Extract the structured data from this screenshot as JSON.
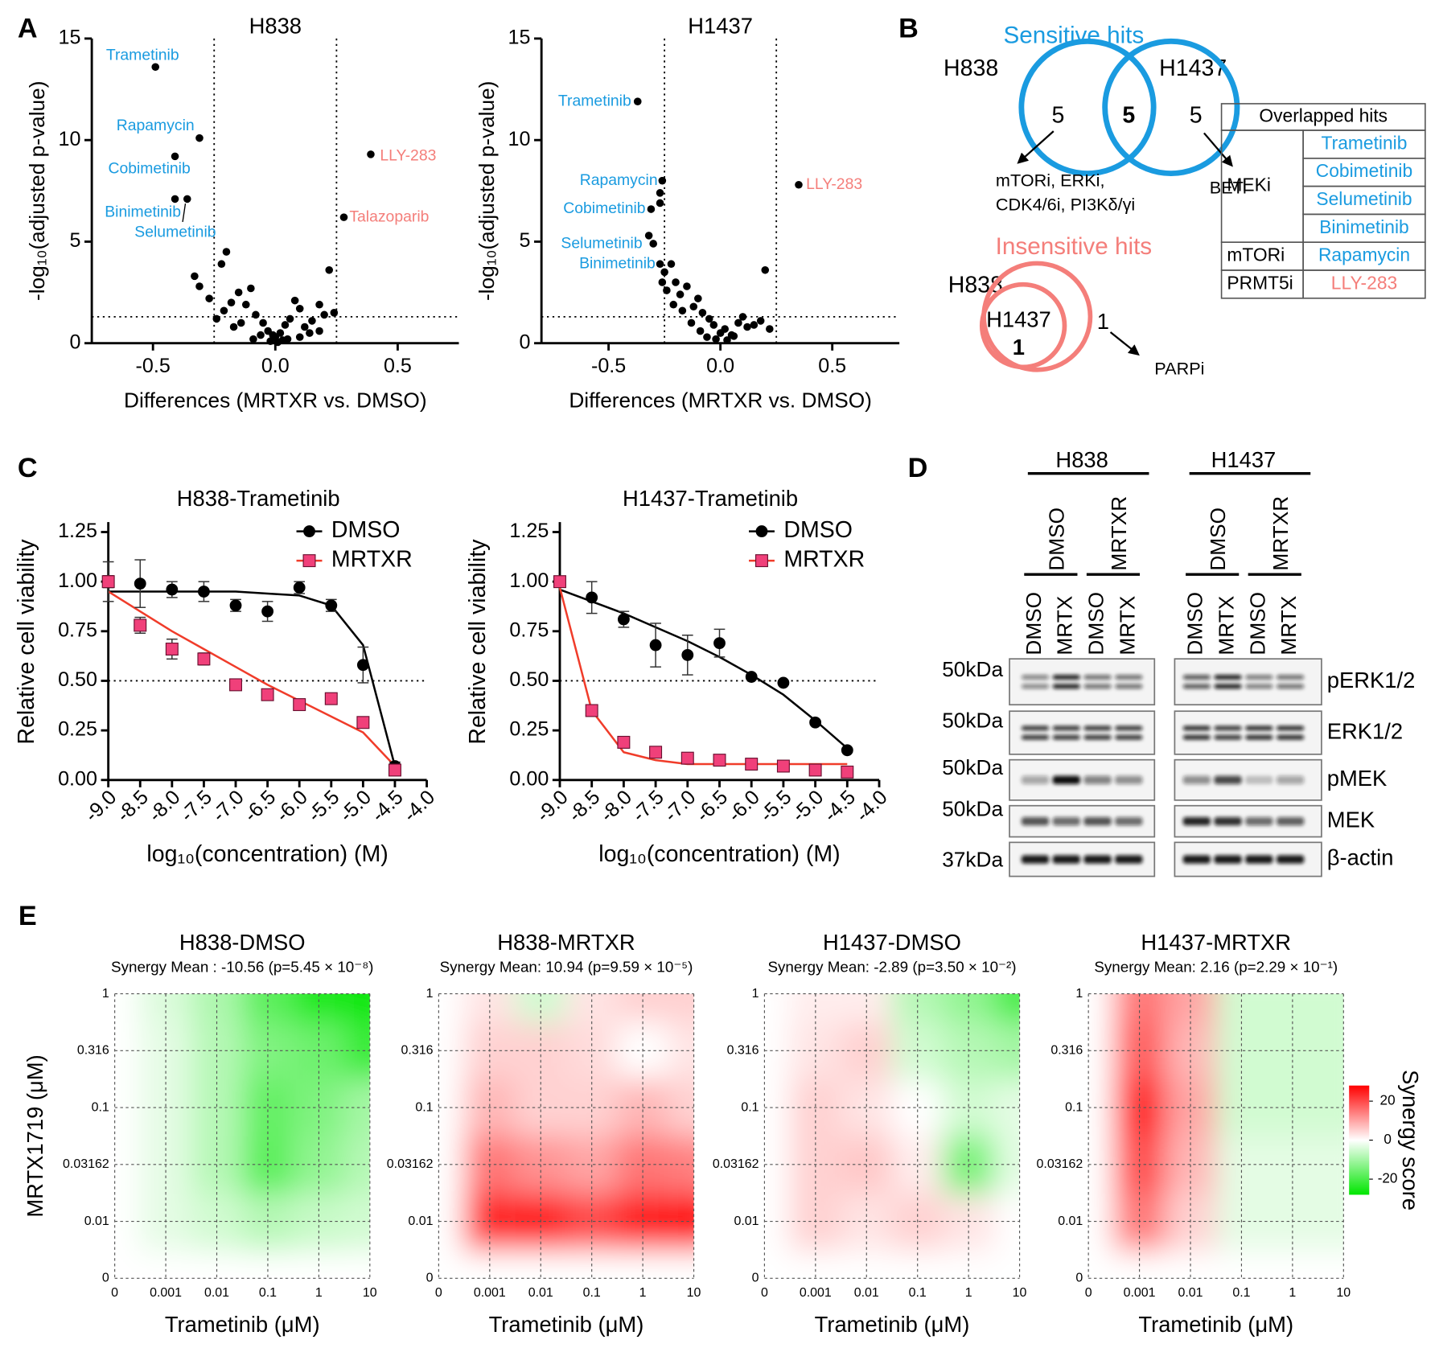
{
  "panel_labels": [
    "A",
    "B",
    "C",
    "D",
    "E"
  ],
  "chart_data": [
    {
      "type": "scatter",
      "title": "H838",
      "xlabel": "Differences (MRTXR vs. DMSO)",
      "ylabel": "-log₁₀(adjusted p-value)",
      "xlim": [
        -0.75,
        0.75
      ],
      "xticks": [
        -0.5,
        {
          "value": 0,
          "label": "0.0"
        },
        0.5
      ],
      "ylim": [
        0,
        15
      ],
      "yticks": [
        0,
        5,
        10,
        15
      ],
      "thresholds": {
        "x": [
          -0.25,
          0.25
        ],
        "y": 1.3
      },
      "color": "#000000",
      "x": [
        -0.49,
        -0.31,
        -0.41,
        -0.41,
        -0.36,
        0.39,
        0.28,
        -0.33,
        -0.31,
        -0.27,
        -0.22,
        -0.2,
        -0.18,
        -0.21,
        -0.15,
        -0.12,
        -0.1,
        -0.08,
        -0.05,
        -0.03,
        0,
        0.02,
        0.04,
        0.06,
        0.08,
        0.1,
        0.12,
        0.15,
        0.18,
        0.2,
        0.22,
        0.24,
        0.18,
        0.05,
        -0.02,
        -0.06,
        -0.14,
        -0.17,
        -0.24,
        0.1,
        0.14,
        -0.09,
        0.01,
        0.03,
        -0.01
      ],
      "values": [
        13.6,
        10.1,
        9.2,
        7.1,
        7.1,
        9.3,
        6.2,
        3.3,
        2.8,
        2.2,
        3.9,
        4.5,
        2.0,
        1.6,
        2.5,
        1.9,
        2.7,
        1.4,
        1.0,
        0.6,
        0.3,
        0.5,
        0.9,
        1.2,
        2.1,
        1.7,
        0.8,
        1.1,
        1.9,
        1.4,
        3.6,
        1.5,
        0.6,
        0.2,
        0.1,
        0.4,
        1.0,
        0.8,
        1.2,
        0.3,
        0.5,
        0.2,
        0.05,
        0.15,
        0.4
      ],
      "point_labels": [
        {
          "index": 0,
          "text": "Trametinib",
          "color": "#1a9be0"
        },
        {
          "index": 1,
          "text": "Rapamycin",
          "color": "#1a9be0"
        },
        {
          "index": 2,
          "text": "Cobimetinib",
          "color": "#1a9be0"
        },
        {
          "index": 3,
          "text": "Binimetinib",
          "color": "#1a9be0"
        },
        {
          "index": 4,
          "text": "Selumetinib",
          "color": "#1a9be0"
        },
        {
          "index": 5,
          "text": "LLY-283",
          "color": "#f47e7a"
        },
        {
          "index": 6,
          "text": "Talazoparib",
          "color": "#f47e7a"
        }
      ]
    },
    {
      "type": "scatter",
      "title": "H1437",
      "xlabel": "Differences (MRTXR vs. DMSO)",
      "ylabel": "-log₁₀(adjusted p-value)",
      "xlim": [
        -0.8,
        0.8
      ],
      "xticks": [
        -0.5,
        {
          "value": 0,
          "label": "0.0"
        },
        0.5
      ],
      "ylim": [
        0,
        15
      ],
      "yticks": [
        0,
        5,
        10,
        15
      ],
      "thresholds": {
        "x": [
          -0.25,
          0.25
        ],
        "y": 1.3
      },
      "color": "#000000",
      "x": [
        -0.37,
        -0.26,
        -0.27,
        -0.31,
        -0.27,
        -0.32,
        -0.3,
        -0.27,
        0.35,
        -0.25,
        -0.22,
        -0.2,
        -0.18,
        -0.15,
        -0.12,
        -0.1,
        -0.08,
        -0.05,
        -0.03,
        0,
        0.02,
        0.05,
        0.08,
        0.1,
        0.12,
        0.15,
        0.2,
        0.22,
        -0.24,
        -0.21,
        -0.17,
        -0.13,
        -0.09,
        -0.06,
        -0.02,
        0.03,
        0.06,
        -0.26,
        0.18
      ],
      "values": [
        11.9,
        8.0,
        7.4,
        6.6,
        6.9,
        5.3,
        4.9,
        3.9,
        7.8,
        3.5,
        3.9,
        3.0,
        2.4,
        2.8,
        1.8,
        2.2,
        1.5,
        1.2,
        0.9,
        0.5,
        0.7,
        0.4,
        1.0,
        1.3,
        0.8,
        0.9,
        3.6,
        0.7,
        2.6,
        1.9,
        1.6,
        1.0,
        0.6,
        0.3,
        0.2,
        0.15,
        0.35,
        3.0,
        1.1
      ],
      "point_labels": [
        {
          "index": 0,
          "text": "Trametinib",
          "color": "#1a9be0"
        },
        {
          "index": 1,
          "text": "Rapamycin",
          "color": "#1a9be0"
        },
        {
          "index": 3,
          "text": "Cobimetinib",
          "color": "#1a9be0"
        },
        {
          "index": 5,
          "text": "Selumetinib",
          "color": "#1a9be0"
        },
        {
          "index": 7,
          "text": "Binimetinib",
          "color": "#1a9be0"
        },
        {
          "index": 8,
          "text": "LLY-283",
          "color": "#f47e7a"
        }
      ]
    },
    {
      "type": "line",
      "title": "H838-Trametinib",
      "xlabel": "log₁₀(concentration) (M)",
      "ylabel": "Relative cell viability",
      "xlim": [
        -9,
        -4
      ],
      "xticks": [
        {
          "value": -9,
          "label": "-9.0"
        },
        -8.5,
        {
          "value": -8,
          "label": "-8.0"
        },
        -7.5,
        {
          "value": -7,
          "label": "-7.0"
        },
        -6.5,
        {
          "value": -6,
          "label": "-6.0"
        },
        -5.5,
        {
          "value": -5,
          "label": "-5.0"
        },
        -4.5,
        {
          "value": -4,
          "label": "-4.0"
        }
      ],
      "ylim": [
        0,
        1.3
      ],
      "yticks": [
        {
          "value": 0,
          "label": "0.00"
        },
        0.25,
        {
          "value": 0.5,
          "label": "0.50"
        },
        0.75,
        {
          "value": 1,
          "label": "1.00"
        },
        1.25
      ],
      "hline": 0.5,
      "legend": "upper right",
      "x": [
        -9,
        -8.5,
        -8,
        -7.5,
        -7,
        -6.5,
        -6,
        -5.5,
        -5,
        -4.5
      ],
      "series": [
        {
          "name": "DMSO",
          "marker": "circle",
          "color": "#000000",
          "line_color": "#000000",
          "values": [
            1.0,
            0.99,
            0.96,
            0.95,
            0.88,
            0.85,
            0.97,
            0.88,
            0.58,
            0.07
          ],
          "errors": [
            0.1,
            0.12,
            0.04,
            0.05,
            0.03,
            0.05,
            0.03,
            0.03,
            0.09,
            0.02
          ],
          "fit": [
            0.95,
            0.95,
            0.95,
            0.95,
            0.95,
            0.94,
            0.93,
            0.88,
            0.68,
            0.07
          ]
        },
        {
          "name": "MRTXR",
          "marker": "square",
          "color": "#f0407a",
          "line_color": "#f03c2a",
          "values": [
            1.0,
            0.78,
            0.66,
            0.61,
            0.48,
            0.43,
            0.38,
            0.41,
            0.29,
            0.05
          ],
          "errors": [
            0.03,
            0.04,
            0.05,
            0.03,
            0.02,
            0.02,
            0.02,
            0.02,
            0.02,
            0.01
          ],
          "fit": [
            0.95,
            0.85,
            0.75,
            0.66,
            0.57,
            0.48,
            0.4,
            0.32,
            0.24,
            0.07
          ]
        }
      ]
    },
    {
      "type": "line",
      "title": "H1437-Trametinib",
      "xlabel": "log₁₀(concentration) (M)",
      "ylabel": "Relative cell viability",
      "xlim": [
        -9,
        -4
      ],
      "xticks": [
        {
          "value": -9,
          "label": "-9.0"
        },
        -8.5,
        {
          "value": -8,
          "label": "-8.0"
        },
        -7.5,
        {
          "value": -7,
          "label": "-7.0"
        },
        -6.5,
        {
          "value": -6,
          "label": "-6.0"
        },
        -5.5,
        {
          "value": -5,
          "label": "-5.0"
        },
        -4.5,
        {
          "value": -4,
          "label": "-4.0"
        }
      ],
      "ylim": [
        0,
        1.3
      ],
      "yticks": [
        {
          "value": 0,
          "label": "0.00"
        },
        0.25,
        {
          "value": 0.5,
          "label": "0.50"
        },
        0.75,
        {
          "value": 1,
          "label": "1.00"
        },
        1.25
      ],
      "hline": 0.5,
      "legend": "upper right",
      "x": [
        -9,
        -8.5,
        -8,
        -7.5,
        -7,
        -6.5,
        -6,
        -5.5,
        -5,
        -4.5
      ],
      "series": [
        {
          "name": "DMSO",
          "marker": "circle",
          "color": "#000000",
          "line_color": "#000000",
          "values": [
            1.0,
            0.92,
            0.81,
            0.68,
            0.63,
            0.69,
            0.52,
            0.49,
            0.29,
            0.15
          ],
          "errors": [
            0.02,
            0.08,
            0.04,
            0.11,
            0.1,
            0.07,
            0.01,
            0.01,
            0.01,
            0.01
          ],
          "fit": [
            0.96,
            0.9,
            0.84,
            0.77,
            0.7,
            0.62,
            0.53,
            0.43,
            0.3,
            0.16
          ]
        },
        {
          "name": "MRTXR",
          "marker": "square",
          "color": "#f0407a",
          "line_color": "#f03c2a",
          "values": [
            1.0,
            0.35,
            0.19,
            0.14,
            0.11,
            0.1,
            0.08,
            0.07,
            0.05,
            0.04
          ],
          "errors": [
            0.02,
            0.01,
            0.01,
            0.01,
            0.01,
            0.01,
            0.01,
            0.01,
            0.01,
            0.01
          ],
          "fit": [
            0.97,
            0.35,
            0.14,
            0.1,
            0.08,
            0.08,
            0.08,
            0.08,
            0.08,
            0.08
          ]
        }
      ]
    },
    {
      "type": "heatmap",
      "title": "H838-DMSO",
      "subtitle": "Synergy Mean : -10.56 (p=5.45 × 10⁻⁸)",
      "xlabel": "Trametinib (μM)",
      "ylabel": "MRTX1719 (μM)",
      "x_categories": [
        "0",
        "0.001",
        "0.01",
        "0.1",
        "1",
        "10"
      ],
      "y_categories": [
        "0",
        "0.01",
        "0.03162",
        "0.1",
        "0.316",
        "1"
      ],
      "values": [
        [
          0,
          0,
          0,
          0,
          0,
          0
        ],
        [
          0,
          -3,
          -5,
          -8,
          -6,
          -5
        ],
        [
          0,
          -3,
          -8,
          -18,
          -12,
          -8
        ],
        [
          0,
          -3,
          -8,
          -17,
          -14,
          -10
        ],
        [
          0,
          -3,
          -8,
          -14,
          -16,
          -22
        ],
        [
          0,
          -4,
          -9,
          -18,
          -25,
          -27
        ]
      ]
    },
    {
      "type": "heatmap",
      "title": "H838-MRTXR",
      "subtitle": "Synergy Mean: 10.94 (p=9.59 × 10⁻⁵)",
      "xlabel": "Trametinib (μM)",
      "x_categories": [
        "0",
        "0.001",
        "0.01",
        "0.1",
        "1",
        "10"
      ],
      "y_categories": [
        "0",
        "0.01",
        "0.03162",
        "0.1",
        "0.316",
        "1"
      ],
      "values": [
        [
          0,
          0,
          0,
          0,
          0,
          0
        ],
        [
          0,
          24,
          25,
          20,
          25,
          27
        ],
        [
          0,
          15,
          12,
          10,
          15,
          14
        ],
        [
          0,
          8,
          5,
          5,
          8,
          5
        ],
        [
          0,
          5,
          5,
          4,
          0,
          3
        ],
        [
          0,
          3,
          -5,
          3,
          5,
          5
        ]
      ]
    },
    {
      "type": "heatmap",
      "title": "H1437-DMSO",
      "subtitle": "Synergy Mean: -2.89 (p=3.50 × 10⁻²)",
      "xlabel": "Trametinib (μM)",
      "x_categories": [
        "0",
        "0.001",
        "0.01",
        "0.1",
        "1",
        "10"
      ],
      "y_categories": [
        "0",
        "0.01",
        "0.03162",
        "0.1",
        "0.316",
        "1"
      ],
      "values": [
        [
          0,
          0,
          0,
          0,
          0,
          0
        ],
        [
          0,
          5,
          3,
          5,
          3,
          0
        ],
        [
          0,
          5,
          6,
          2,
          -15,
          -3
        ],
        [
          0,
          5,
          3,
          0,
          -5,
          -3
        ],
        [
          0,
          3,
          5,
          -5,
          -8,
          -10
        ],
        [
          0,
          2,
          2,
          -8,
          -12,
          -20
        ]
      ]
    },
    {
      "type": "heatmap",
      "title": "H1437-MRTXR",
      "subtitle": "Synergy Mean: 2.16 (p=2.29 × 10⁻¹)",
      "xlabel": "Trametinib (μM)",
      "x_categories": [
        "0",
        "0.001",
        "0.01",
        "0.1",
        "1",
        "10"
      ],
      "y_categories": [
        "0",
        "0.01",
        "0.03162",
        "0.1",
        "0.316",
        "1"
      ],
      "values": [
        [
          0,
          0,
          0,
          0,
          0,
          0
        ],
        [
          0,
          15,
          5,
          -3,
          -3,
          -3
        ],
        [
          0,
          20,
          8,
          -3,
          -3,
          -3
        ],
        [
          0,
          25,
          10,
          -5,
          -5,
          -5
        ],
        [
          0,
          18,
          8,
          -5,
          -5,
          -5
        ],
        [
          0,
          15,
          10,
          -5,
          -5,
          -5
        ]
      ],
      "colorbar": {
        "label": "Synergy score",
        "zlim": [
          -28,
          28
        ],
        "zticks": [
          -20,
          0,
          20
        ]
      }
    }
  ],
  "venn": {
    "sensitive": {
      "title": "Sensitive hits",
      "sets": [
        "H838",
        "H1437"
      ],
      "counts": [
        5,
        5,
        5
      ],
      "notes": [
        [
          "mTORi, ERKi,",
          "CDK4/6i, PI3Kδ/γi"
        ],
        [
          "BETi"
        ]
      ]
    },
    "insensitive": {
      "title": "Insensitive hits",
      "sets": [
        "H838",
        "H1437"
      ],
      "counts": [
        1,
        1
      ],
      "notes": [
        [
          "PARPi"
        ]
      ]
    }
  },
  "table": {
    "header": "Overlapped hits",
    "groups": [
      {
        "class": "MEKi",
        "color": "#1a9be0",
        "drugs": [
          "Trametinib",
          "Cobimetinib",
          "Selumetinib",
          "Binimetinib"
        ]
      },
      {
        "class": "mTORi",
        "color": "#1a9be0",
        "drugs": [
          "Rapamycin"
        ]
      },
      {
        "class": "PRMT5i",
        "color": "#f47e7a",
        "drugs": [
          "LLY-283"
        ]
      }
    ]
  },
  "western": {
    "groups": [
      {
        "cell": "H838",
        "treatments": [
          {
            "label": "DMSO",
            "lanes": [
              "DMSO",
              "MRTX"
            ]
          },
          {
            "label": "MRTXR",
            "lanes": [
              "DMSO",
              "MRTX"
            ]
          }
        ]
      },
      {
        "cell": "H1437",
        "treatments": [
          {
            "label": "DMSO",
            "lanes": [
              "DMSO",
              "MRTX"
            ]
          },
          {
            "label": "MRTXR",
            "lanes": [
              "DMSO",
              "MRTX"
            ]
          }
        ]
      }
    ],
    "rows": [
      {
        "protein": "pERK1/2",
        "marker": "50kDa"
      },
      {
        "protein": "ERK1/2",
        "marker": "50kDa"
      },
      {
        "protein": "pMEK",
        "marker": "50kDa"
      },
      {
        "protein": "MEK",
        "marker": "50kDa"
      },
      {
        "protein": "β-actin",
        "marker": "37kDa"
      }
    ]
  }
}
